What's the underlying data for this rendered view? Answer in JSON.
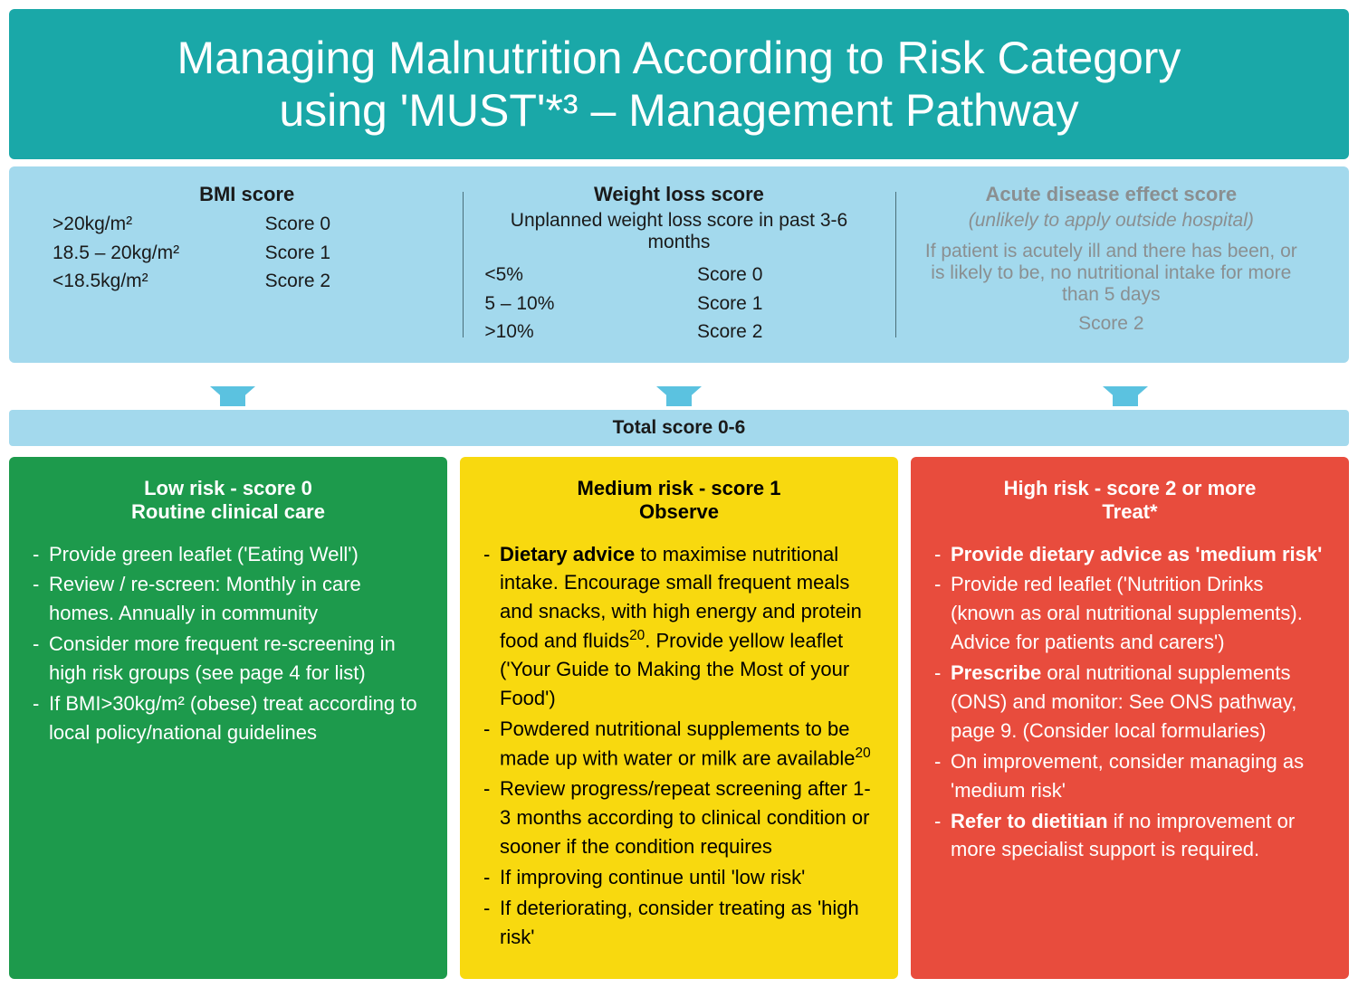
{
  "colors": {
    "header_bg": "#1aa8a8",
    "score_bg": "#a3d9ed",
    "arrow_fill": "#5bc2e0",
    "total_bg": "#a3d9ed",
    "low_bg": "#1d9a4c",
    "med_bg": "#f8d90f",
    "high_bg": "#e84c3d",
    "text_dark": "#1a1a1a",
    "text_muted": "#8a8f91"
  },
  "typography": {
    "header_fontsize": 50,
    "score_title_fontsize": 22,
    "body_fontsize": 21,
    "risk_fontsize": 22
  },
  "header": {
    "line1": "Managing Malnutrition According to Risk Category",
    "line2": "using 'MUST'*³ – Management Pathway"
  },
  "score_panels": [
    {
      "title": "BMI score",
      "subtitle": "",
      "muted": false,
      "rows_left": [
        ">20kg/m²",
        "18.5 – 20kg/m²",
        "<18.5kg/m²"
      ],
      "rows_right": [
        "Score 0",
        "Score 1",
        "Score 2"
      ]
    },
    {
      "title": "Weight loss score",
      "subtitle": "Unplanned weight loss score in past 3-6 months",
      "muted": false,
      "rows_left": [
        "<5%",
        "5 – 10%",
        ">10%"
      ],
      "rows_right": [
        "Score 0",
        "Score 1",
        "Score 2"
      ]
    },
    {
      "title": "Acute disease effect score",
      "subtitle_italic": "(unlikely to apply outside hospital)",
      "muted": true,
      "body_text": "If patient is acutely ill and there has been, or is likely to be, no nutritional intake for more than 5 days",
      "score_line": "Score 2"
    }
  ],
  "total_bar": "Total score 0-6",
  "risk_boxes": [
    {
      "class": "low",
      "bg_key": "low_bg",
      "head1": "Low risk - score 0",
      "head2": "Routine clinical care",
      "items": [
        "Provide green leaflet ('Eating Well')",
        "Review / re-screen: Monthly in care homes. Annually in community",
        "Consider more frequent re-screening in high risk groups (see page 4 for list)",
        "If BMI>30kg/m² (obese) treat according to local policy/national guidelines"
      ]
    },
    {
      "class": "med",
      "bg_key": "med_bg",
      "head1": "Medium risk - score 1",
      "head2": "Observe",
      "items_html": [
        "<span class='b'>Dietary advice</span> to maximise nutritional intake. Encourage small frequent meals and snacks, with high energy and protein food and fluids<sup>20</sup>. Provide yellow leaflet ('Your Guide to Making the Most of your Food')",
        "Powdered nutritional supplements to be made up with water or milk are available<sup>20</sup>",
        "Review progress/repeat screening after 1-3 months according to clinical condition or sooner if the condition requires",
        "If improving continue until 'low risk'",
        "If deteriorating, consider treating as 'high risk'"
      ]
    },
    {
      "class": "high",
      "bg_key": "high_bg",
      "head1": "High risk - score 2 or more",
      "head2": "Treat*",
      "items_html": [
        "<span class='b'>Provide dietary advice as 'medium risk'</span>",
        "Provide red leaflet ('Nutrition Drinks (known as oral nutritional supplements). Advice for patients and carers')",
        "<span class='b'>Prescribe</span> oral nutritional supplements (ONS) and monitor: See ONS pathway, page 9. (Consider local formularies)",
        "On improvement, consider managing as 'medium risk'",
        "<span class='b'>Refer to dietitian</span> if no improvement or more specialist support is required."
      ]
    }
  ]
}
